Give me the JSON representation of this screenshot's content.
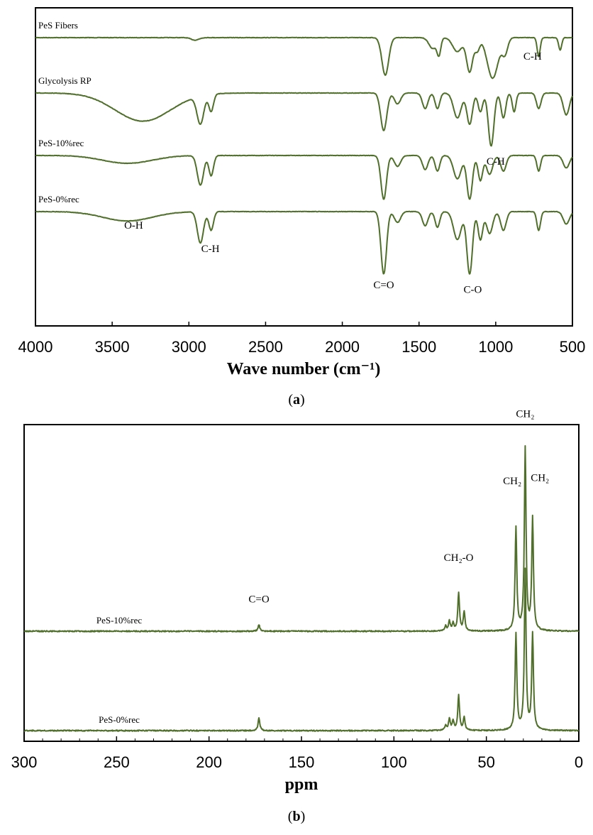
{
  "colors": {
    "trace": "#4f6f2a",
    "axis": "#000000",
    "background": "#ffffff"
  },
  "chart_data": [
    {
      "panel": "(a)",
      "panel_caption": {
        "open": "(",
        "letter": "a",
        "close": ")"
      },
      "type": "line",
      "xlabel": "Wave number (cm⁻¹)",
      "ylabel": "",
      "xlim": [
        4000,
        500
      ],
      "x_reversed": true,
      "xticks": [
        4000,
        3500,
        3000,
        2500,
        2000,
        1500,
        1000,
        500
      ],
      "grid": false,
      "legend": "none",
      "series": [
        {
          "name": "PeS Fibers",
          "offset": 0,
          "baseline": 1,
          "peaks": [
            {
              "x": 2960,
              "d": 0.08,
              "w": 25
            },
            {
              "x": 1720,
              "d": 1.2,
              "w": 22
            },
            {
              "x": 1410,
              "d": 0.35,
              "w": 25
            },
            {
              "x": 1370,
              "d": 0.5,
              "w": 12
            },
            {
              "x": 1250,
              "d": 0.45,
              "w": 30
            },
            {
              "x": 1170,
              "d": 1.1,
              "w": 20
            },
            {
              "x": 1120,
              "d": 0.4,
              "w": 15
            },
            {
              "x": 1020,
              "d": 1.3,
              "w": 35
            },
            {
              "x": 940,
              "d": 0.5,
              "w": 18
            },
            {
              "x": 720,
              "d": 0.6,
              "w": 10
            },
            {
              "x": 580,
              "d": 0.4,
              "w": 10
            }
          ]
        },
        {
          "name": "Glycolysis RP",
          "offset": 1,
          "baseline": 1,
          "peaks": [
            {
              "x": 3300,
              "d": 0.9,
              "w": 180
            },
            {
              "x": 2925,
              "d": 0.9,
              "w": 22
            },
            {
              "x": 2855,
              "d": 0.55,
              "w": 15
            },
            {
              "x": 1730,
              "d": 1.2,
              "w": 20
            },
            {
              "x": 1640,
              "d": 0.35,
              "w": 20
            },
            {
              "x": 1460,
              "d": 0.5,
              "w": 18
            },
            {
              "x": 1380,
              "d": 0.5,
              "w": 15
            },
            {
              "x": 1250,
              "d": 0.8,
              "w": 25
            },
            {
              "x": 1170,
              "d": 1.0,
              "w": 18
            },
            {
              "x": 1100,
              "d": 0.6,
              "w": 15
            },
            {
              "x": 1030,
              "d": 1.7,
              "w": 18
            },
            {
              "x": 950,
              "d": 0.8,
              "w": 15
            },
            {
              "x": 880,
              "d": 0.6,
              "w": 12
            },
            {
              "x": 720,
              "d": 0.5,
              "w": 15
            },
            {
              "x": 540,
              "d": 0.7,
              "w": 20
            }
          ]
        },
        {
          "name": "PeS-10%rec",
          "offset": 2,
          "baseline": 1,
          "peaks": [
            {
              "x": 3400,
              "d": 0.25,
              "w": 160
            },
            {
              "x": 2925,
              "d": 0.95,
              "w": 20
            },
            {
              "x": 2855,
              "d": 0.65,
              "w": 15
            },
            {
              "x": 1730,
              "d": 1.4,
              "w": 18
            },
            {
              "x": 1640,
              "d": 0.35,
              "w": 20
            },
            {
              "x": 1460,
              "d": 0.45,
              "w": 18
            },
            {
              "x": 1380,
              "d": 0.5,
              "w": 15
            },
            {
              "x": 1250,
              "d": 0.75,
              "w": 25
            },
            {
              "x": 1170,
              "d": 1.4,
              "w": 18
            },
            {
              "x": 1100,
              "d": 0.8,
              "w": 15
            },
            {
              "x": 1040,
              "d": 0.6,
              "w": 20
            },
            {
              "x": 950,
              "d": 0.5,
              "w": 18
            },
            {
              "x": 720,
              "d": 0.5,
              "w": 12
            },
            {
              "x": 540,
              "d": 0.4,
              "w": 20
            }
          ]
        },
        {
          "name": "PeS-0%rec",
          "offset": 3,
          "baseline": 1,
          "peaks": [
            {
              "x": 3400,
              "d": 0.3,
              "w": 160
            },
            {
              "x": 2925,
              "d": 1.0,
              "w": 20
            },
            {
              "x": 2855,
              "d": 0.6,
              "w": 15
            },
            {
              "x": 1730,
              "d": 2.0,
              "w": 18
            },
            {
              "x": 1640,
              "d": 0.35,
              "w": 20
            },
            {
              "x": 1460,
              "d": 0.45,
              "w": 18
            },
            {
              "x": 1380,
              "d": 0.5,
              "w": 15
            },
            {
              "x": 1250,
              "d": 0.9,
              "w": 25
            },
            {
              "x": 1170,
              "d": 2.0,
              "w": 18
            },
            {
              "x": 1100,
              "d": 0.9,
              "w": 15
            },
            {
              "x": 1040,
              "d": 0.7,
              "w": 20
            },
            {
              "x": 950,
              "d": 0.6,
              "w": 18
            },
            {
              "x": 720,
              "d": 0.6,
              "w": 12
            },
            {
              "x": 540,
              "d": 0.4,
              "w": 20
            }
          ]
        }
      ],
      "annotations": [
        {
          "text": "C-H",
          "x": 760,
          "series": 0,
          "dy": 0.7
        },
        {
          "text": "C-H",
          "x": 1000,
          "series": 2,
          "dy": 0.3
        },
        {
          "text": "O-H",
          "x": 3360,
          "series": 3,
          "dy": 0.55
        },
        {
          "text": "C-H",
          "x": 2860,
          "series": 3,
          "dy": 1.3
        },
        {
          "text": "C=O",
          "x": 1730,
          "series": 3,
          "dy": 2.45
        },
        {
          "text": "C-O",
          "x": 1150,
          "series": 3,
          "dy": 2.6
        }
      ]
    },
    {
      "panel": "(b)",
      "panel_caption": {
        "open": "(",
        "letter": "b",
        "close": ")"
      },
      "type": "line",
      "xlabel": "ppm",
      "ylabel": "",
      "xlim": [
        300,
        0
      ],
      "x_reversed": true,
      "xticks": [
        300,
        250,
        200,
        150,
        100,
        50,
        0
      ],
      "grid": false,
      "legend": "none",
      "series": [
        {
          "name": "PeS-10%rec",
          "offset": 0,
          "peaks": [
            {
              "x": 173,
              "h": 0.1
            },
            {
              "x": 72,
              "h": 0.08
            },
            {
              "x": 70,
              "h": 0.15
            },
            {
              "x": 68,
              "h": 0.12
            },
            {
              "x": 65,
              "h": 0.6
            },
            {
              "x": 62,
              "h": 0.3
            },
            {
              "x": 34,
              "h": 1.6
            },
            {
              "x": 29,
              "h": 2.85
            },
            {
              "x": 25,
              "h": 1.75
            }
          ]
        },
        {
          "name": "PeS-0%rec",
          "offset": 1,
          "peaks": [
            {
              "x": 173,
              "h": 0.2
            },
            {
              "x": 72,
              "h": 0.08
            },
            {
              "x": 70,
              "h": 0.18
            },
            {
              "x": 68,
              "h": 0.15
            },
            {
              "x": 65,
              "h": 0.55
            },
            {
              "x": 62,
              "h": 0.2
            },
            {
              "x": 34,
              "h": 1.5
            },
            {
              "x": 29,
              "h": 2.5
            },
            {
              "x": 25,
              "h": 1.5
            }
          ]
        }
      ],
      "annotations": [
        {
          "text": "C=O",
          "x": 173,
          "series": 0,
          "h": 0.45
        },
        {
          "text": "CH₂-O",
          "x": 65,
          "series": 0,
          "h": 1.1
        },
        {
          "text": "CH₂",
          "x": 36,
          "series": 0,
          "h": 2.3
        },
        {
          "text": "CH₂",
          "x": 29,
          "series": 0,
          "h": 3.35
        },
        {
          "text": "CH₂",
          "x": 21,
          "series": 0,
          "h": 2.35
        }
      ]
    }
  ]
}
